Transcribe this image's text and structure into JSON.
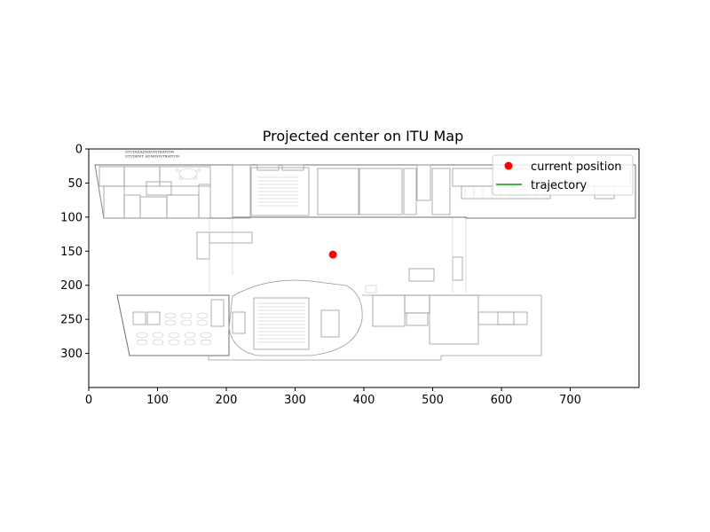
{
  "chart_data": {
    "type": "scatter",
    "title": "Projected center on ITU Map",
    "xlabel": "",
    "ylabel": "",
    "xlim": [
      0,
      800
    ],
    "ylim": [
      350,
      0
    ],
    "y_inverted": true,
    "xticks": [
      0,
      100,
      200,
      300,
      400,
      500,
      600,
      700
    ],
    "yticks": [
      0,
      50,
      100,
      150,
      200,
      250,
      300
    ],
    "grid": false,
    "legend_position": "top-right",
    "background": "floor-plan image",
    "series": [
      {
        "name": "current position",
        "kind": "point",
        "color": "#ff0000",
        "points": [
          [
            355,
            155
          ]
        ]
      },
      {
        "name": "trajectory",
        "kind": "line",
        "color": "#2ca02c",
        "points": []
      }
    ]
  },
  "map": {
    "header_line1": "STUDIEADMINISTRATION",
    "header_line2": "STUDENT ADMINISTRATION"
  }
}
